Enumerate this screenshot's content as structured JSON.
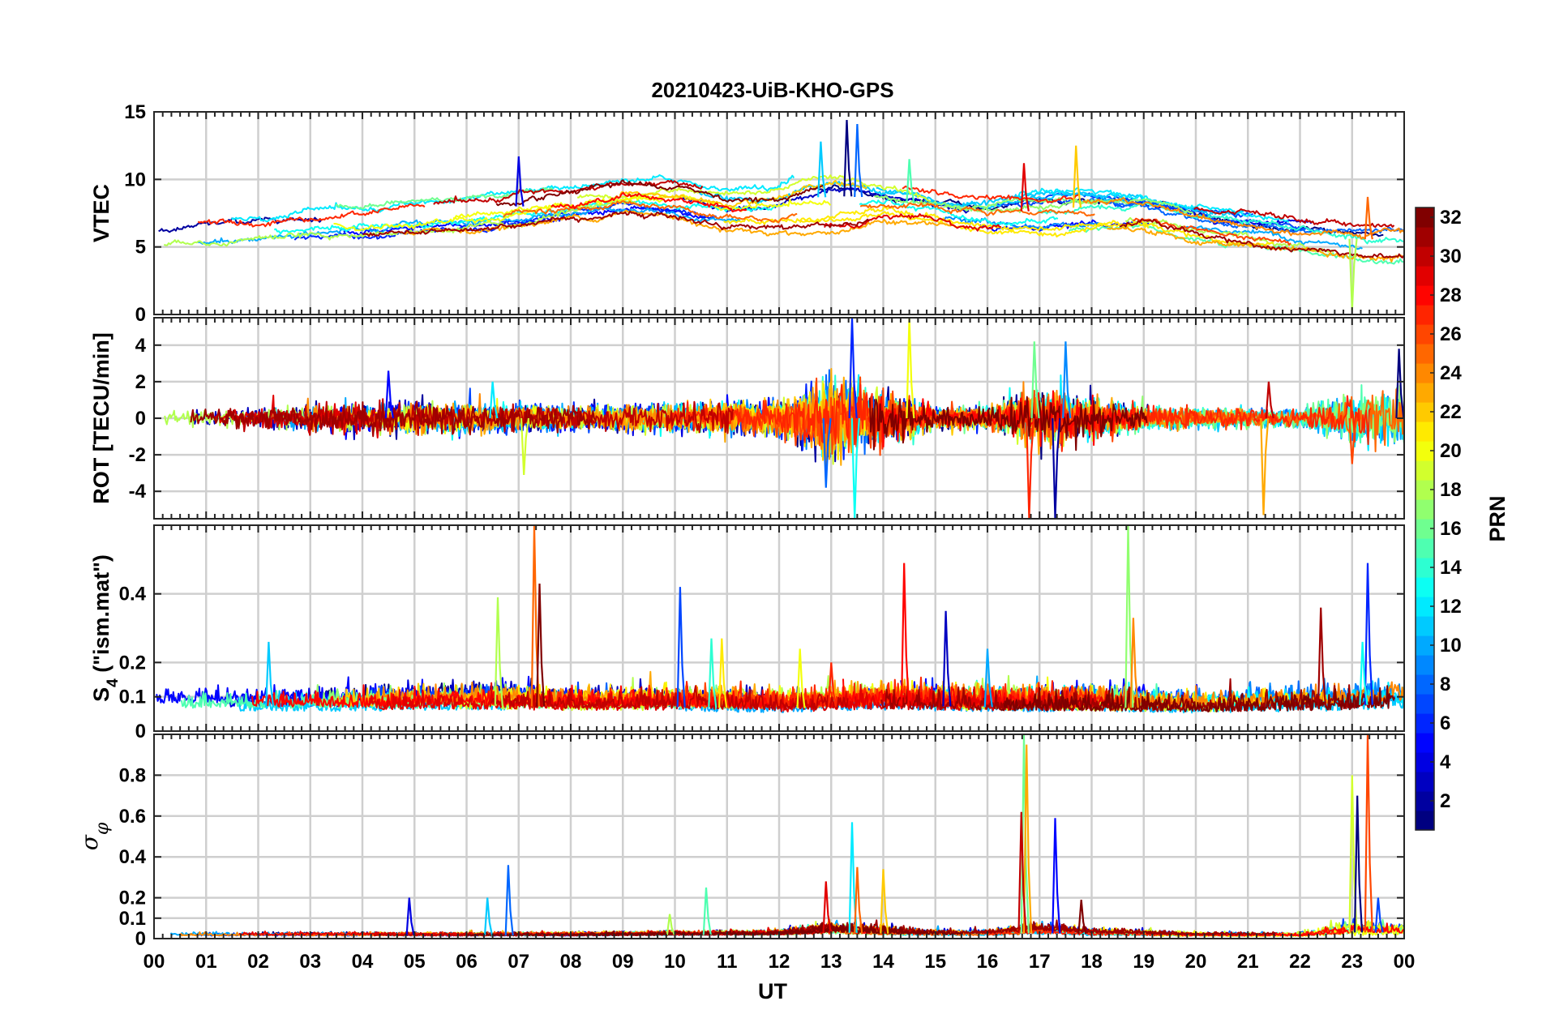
{
  "figure_title": "20210423-UiB-KHO-GPS",
  "x_axis": {
    "label": "UT",
    "ticks": [
      "00",
      "01",
      "02",
      "03",
      "04",
      "05",
      "06",
      "07",
      "08",
      "09",
      "10",
      "11",
      "12",
      "13",
      "14",
      "15",
      "16",
      "17",
      "18",
      "19",
      "20",
      "21",
      "22",
      "23",
      "00"
    ]
  },
  "colorbar": {
    "label": "PRN",
    "colormap": "jet",
    "range": [
      1,
      32
    ],
    "ticks": [
      "2",
      "4",
      "6",
      "8",
      "10",
      "12",
      "14",
      "16",
      "18",
      "20",
      "22",
      "24",
      "26",
      "28",
      "30",
      "32"
    ]
  },
  "chart_data": [
    {
      "type": "line",
      "ylabel": "VTEC",
      "ylim": [
        0,
        15
      ],
      "yticks": [
        "0",
        "5",
        "10",
        "15"
      ],
      "xlim": [
        0,
        24
      ],
      "grid": true,
      "series_by": "PRN (1-32), color from colorbar",
      "envelope": {
        "x": [
          0,
          1,
          2,
          3,
          4,
          5,
          6,
          7,
          8,
          9,
          10,
          11,
          12,
          12.5,
          13,
          13.5,
          14,
          15,
          16,
          17,
          18,
          19,
          20,
          21,
          22,
          23,
          24
        ],
        "center": [
          5.8,
          6.1,
          6.4,
          6.9,
          7.0,
          7.2,
          7.5,
          8.0,
          8.3,
          8.8,
          8.6,
          8.0,
          8.0,
          8.5,
          8.8,
          8.7,
          8.5,
          8.0,
          7.5,
          7.7,
          8.0,
          7.8,
          7.0,
          6.4,
          5.9,
          5.6,
          5.5
        ],
        "spread": [
          1.0,
          1.2,
          1.2,
          1.2,
          1.4,
          1.4,
          1.6,
          1.6,
          1.4,
          1.3,
          1.6,
          1.6,
          1.8,
          2.4,
          2.6,
          2.4,
          1.6,
          1.5,
          1.5,
          2.0,
          2.0,
          1.5,
          1.4,
          1.3,
          1.2,
          1.6,
          1.6
        ],
        "spikes": [
          [
            13.3,
            14.4
          ],
          [
            13.5,
            14.1
          ],
          [
            14.5,
            11.5
          ],
          [
            17.7,
            12.5
          ],
          [
            16.7,
            11.2
          ],
          [
            7.0,
            11.7
          ],
          [
            12.8,
            12.8
          ],
          [
            23.0,
            0.3
          ],
          [
            23.3,
            8.7
          ]
        ]
      }
    },
    {
      "type": "line",
      "ylabel": "ROT [TECU/min]",
      "ylim": [
        -5.5,
        5.5
      ],
      "yticks": [
        "-4",
        "-2",
        "0",
        "2",
        "4"
      ],
      "xlim": [
        0,
        24
      ],
      "grid": true,
      "series_by": "PRN (1-32), color from colorbar",
      "envelope": {
        "x": [
          0,
          2,
          4,
          6,
          8,
          10,
          12,
          12.5,
          13,
          13.5,
          14,
          14.5,
          15,
          16,
          16.5,
          17,
          17.5,
          18,
          19,
          20,
          22,
          23,
          24
        ],
        "center": [
          0,
          0,
          0,
          0,
          0,
          0,
          0,
          0,
          0,
          0,
          0,
          0,
          0,
          0,
          0,
          0,
          0,
          0,
          0,
          0,
          0,
          0,
          0
        ],
        "spread": [
          0.3,
          0.5,
          0.7,
          0.7,
          0.5,
          0.6,
          0.8,
          1.2,
          1.8,
          1.6,
          1.2,
          0.9,
          0.5,
          0.5,
          0.9,
          1.2,
          1.2,
          0.9,
          0.5,
          0.4,
          0.4,
          1.0,
          1.2
        ],
        "spikes": [
          [
            13.4,
            5.5
          ],
          [
            13.45,
            -5.5
          ],
          [
            14.5,
            5.5
          ],
          [
            16.8,
            -5.5
          ],
          [
            17.3,
            -5.5
          ],
          [
            17.5,
            4.2
          ],
          [
            16.9,
            4.2
          ],
          [
            21.3,
            -5.3
          ],
          [
            21.4,
            2.0
          ],
          [
            4.5,
            2.6
          ],
          [
            6.5,
            2.0
          ],
          [
            7.1,
            -3.1
          ],
          [
            23.0,
            -2.5
          ],
          [
            23.9,
            3.8
          ],
          [
            12.9,
            -3.8
          ]
        ]
      }
    },
    {
      "type": "line",
      "ylabel": "S4 (\"ism.mat\")",
      "ylabel_main": "S",
      "ylabel_sub": "4",
      "ylabel_rest": " (\"ism.mat\")",
      "ylim": [
        0,
        0.6
      ],
      "yticks": [
        "0",
        "0.1",
        "0.2",
        "0.4"
      ],
      "xlim": [
        0,
        24
      ],
      "grid": true,
      "series_by": "PRN (1-32), color from colorbar",
      "envelope": {
        "x": [
          0,
          2,
          4,
          6,
          8,
          10,
          12,
          14,
          16,
          18,
          20,
          22,
          24
        ],
        "center": [
          0.07,
          0.07,
          0.07,
          0.075,
          0.07,
          0.07,
          0.065,
          0.075,
          0.07,
          0.07,
          0.065,
          0.07,
          0.08
        ],
        "spread": [
          0.035,
          0.035,
          0.035,
          0.04,
          0.035,
          0.035,
          0.035,
          0.04,
          0.04,
          0.04,
          0.035,
          0.04,
          0.045
        ],
        "spikes": [
          [
            2.2,
            0.26
          ],
          [
            6.6,
            0.39
          ],
          [
            7.3,
            0.6
          ],
          [
            7.4,
            0.43
          ],
          [
            10.1,
            0.42
          ],
          [
            10.7,
            0.27
          ],
          [
            10.9,
            0.27
          ],
          [
            14.4,
            0.49
          ],
          [
            15.2,
            0.35
          ],
          [
            16.0,
            0.24
          ],
          [
            18.7,
            0.6
          ],
          [
            18.8,
            0.33
          ],
          [
            22.4,
            0.36
          ],
          [
            23.3,
            0.49
          ],
          [
            23.2,
            0.26
          ],
          [
            12.4,
            0.24
          ],
          [
            13.0,
            0.2
          ]
        ]
      }
    },
    {
      "type": "line",
      "ylabel": "σφ",
      "ylim": [
        0,
        1
      ],
      "yticks": [
        "0",
        "0.1",
        "0.2",
        "0.4",
        "0.6",
        "0.8"
      ],
      "xlim": [
        0,
        24
      ],
      "grid": true,
      "series_by": "PRN (1-32), color from colorbar",
      "envelope": {
        "x": [
          0,
          4,
          8,
          12,
          13,
          14,
          15,
          16,
          17,
          18,
          20,
          22,
          23,
          24
        ],
        "center": [
          0.015,
          0.015,
          0.015,
          0.02,
          0.03,
          0.025,
          0.02,
          0.02,
          0.03,
          0.02,
          0.015,
          0.015,
          0.03,
          0.03
        ],
        "spread": [
          0.01,
          0.01,
          0.01,
          0.015,
          0.03,
          0.025,
          0.015,
          0.015,
          0.03,
          0.02,
          0.01,
          0.01,
          0.04,
          0.03
        ],
        "spikes": [
          [
            16.7,
            1.0
          ],
          [
            16.75,
            0.95
          ],
          [
            16.65,
            0.62
          ],
          [
            17.3,
            0.59
          ],
          [
            13.4,
            0.57
          ],
          [
            23.0,
            0.8
          ],
          [
            23.3,
            1.0
          ],
          [
            23.1,
            0.7
          ],
          [
            6.8,
            0.36
          ],
          [
            10.6,
            0.25
          ],
          [
            14.0,
            0.34
          ],
          [
            12.9,
            0.28
          ],
          [
            4.9,
            0.2
          ],
          [
            6.4,
            0.2
          ],
          [
            9.9,
            0.12
          ],
          [
            13.5,
            0.35
          ],
          [
            17.8,
            0.19
          ],
          [
            23.5,
            0.2
          ]
        ]
      }
    }
  ]
}
